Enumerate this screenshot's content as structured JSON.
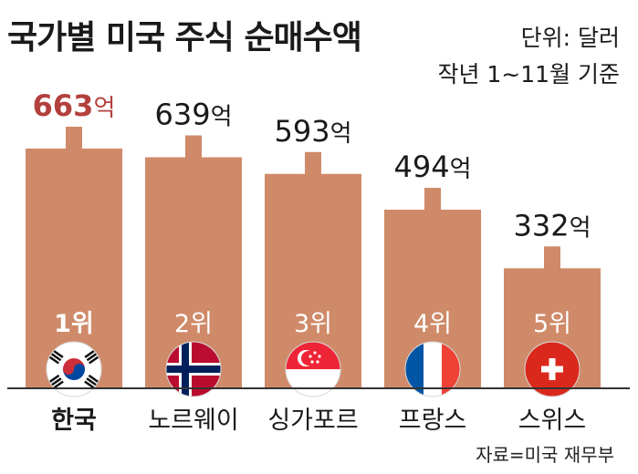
{
  "header": {
    "title": "국가별 미국 주식 순매수액",
    "unit_line1": "단위: 달러",
    "unit_line2": "작년 1~11월 기준"
  },
  "source": "자료=미국 재무부",
  "colors": {
    "bar": "#cf8a69",
    "highlight_value": "#b2403c",
    "rank_text": "#ffffff",
    "axis": "#333333"
  },
  "chart_data": {
    "type": "bar",
    "title": "국가별 미국 주식 순매수액",
    "categories": [
      "한국",
      "노르웨이",
      "싱가포르",
      "프랑스",
      "스위스"
    ],
    "values": [
      663,
      639,
      593,
      494,
      332
    ],
    "value_labels": [
      "663억",
      "639억",
      "593억",
      "494억",
      "332억"
    ],
    "rank_labels": [
      "1위",
      "2위",
      "3위",
      "4위",
      "5위"
    ],
    "flags": [
      "south-korea-flag-icon",
      "norway-flag-icon",
      "singapore-flag-icon",
      "france-flag-icon",
      "switzerland-flag-icon"
    ],
    "highlight_index": 0,
    "ylim": [
      0,
      700
    ],
    "grid": false,
    "legend": "none"
  }
}
